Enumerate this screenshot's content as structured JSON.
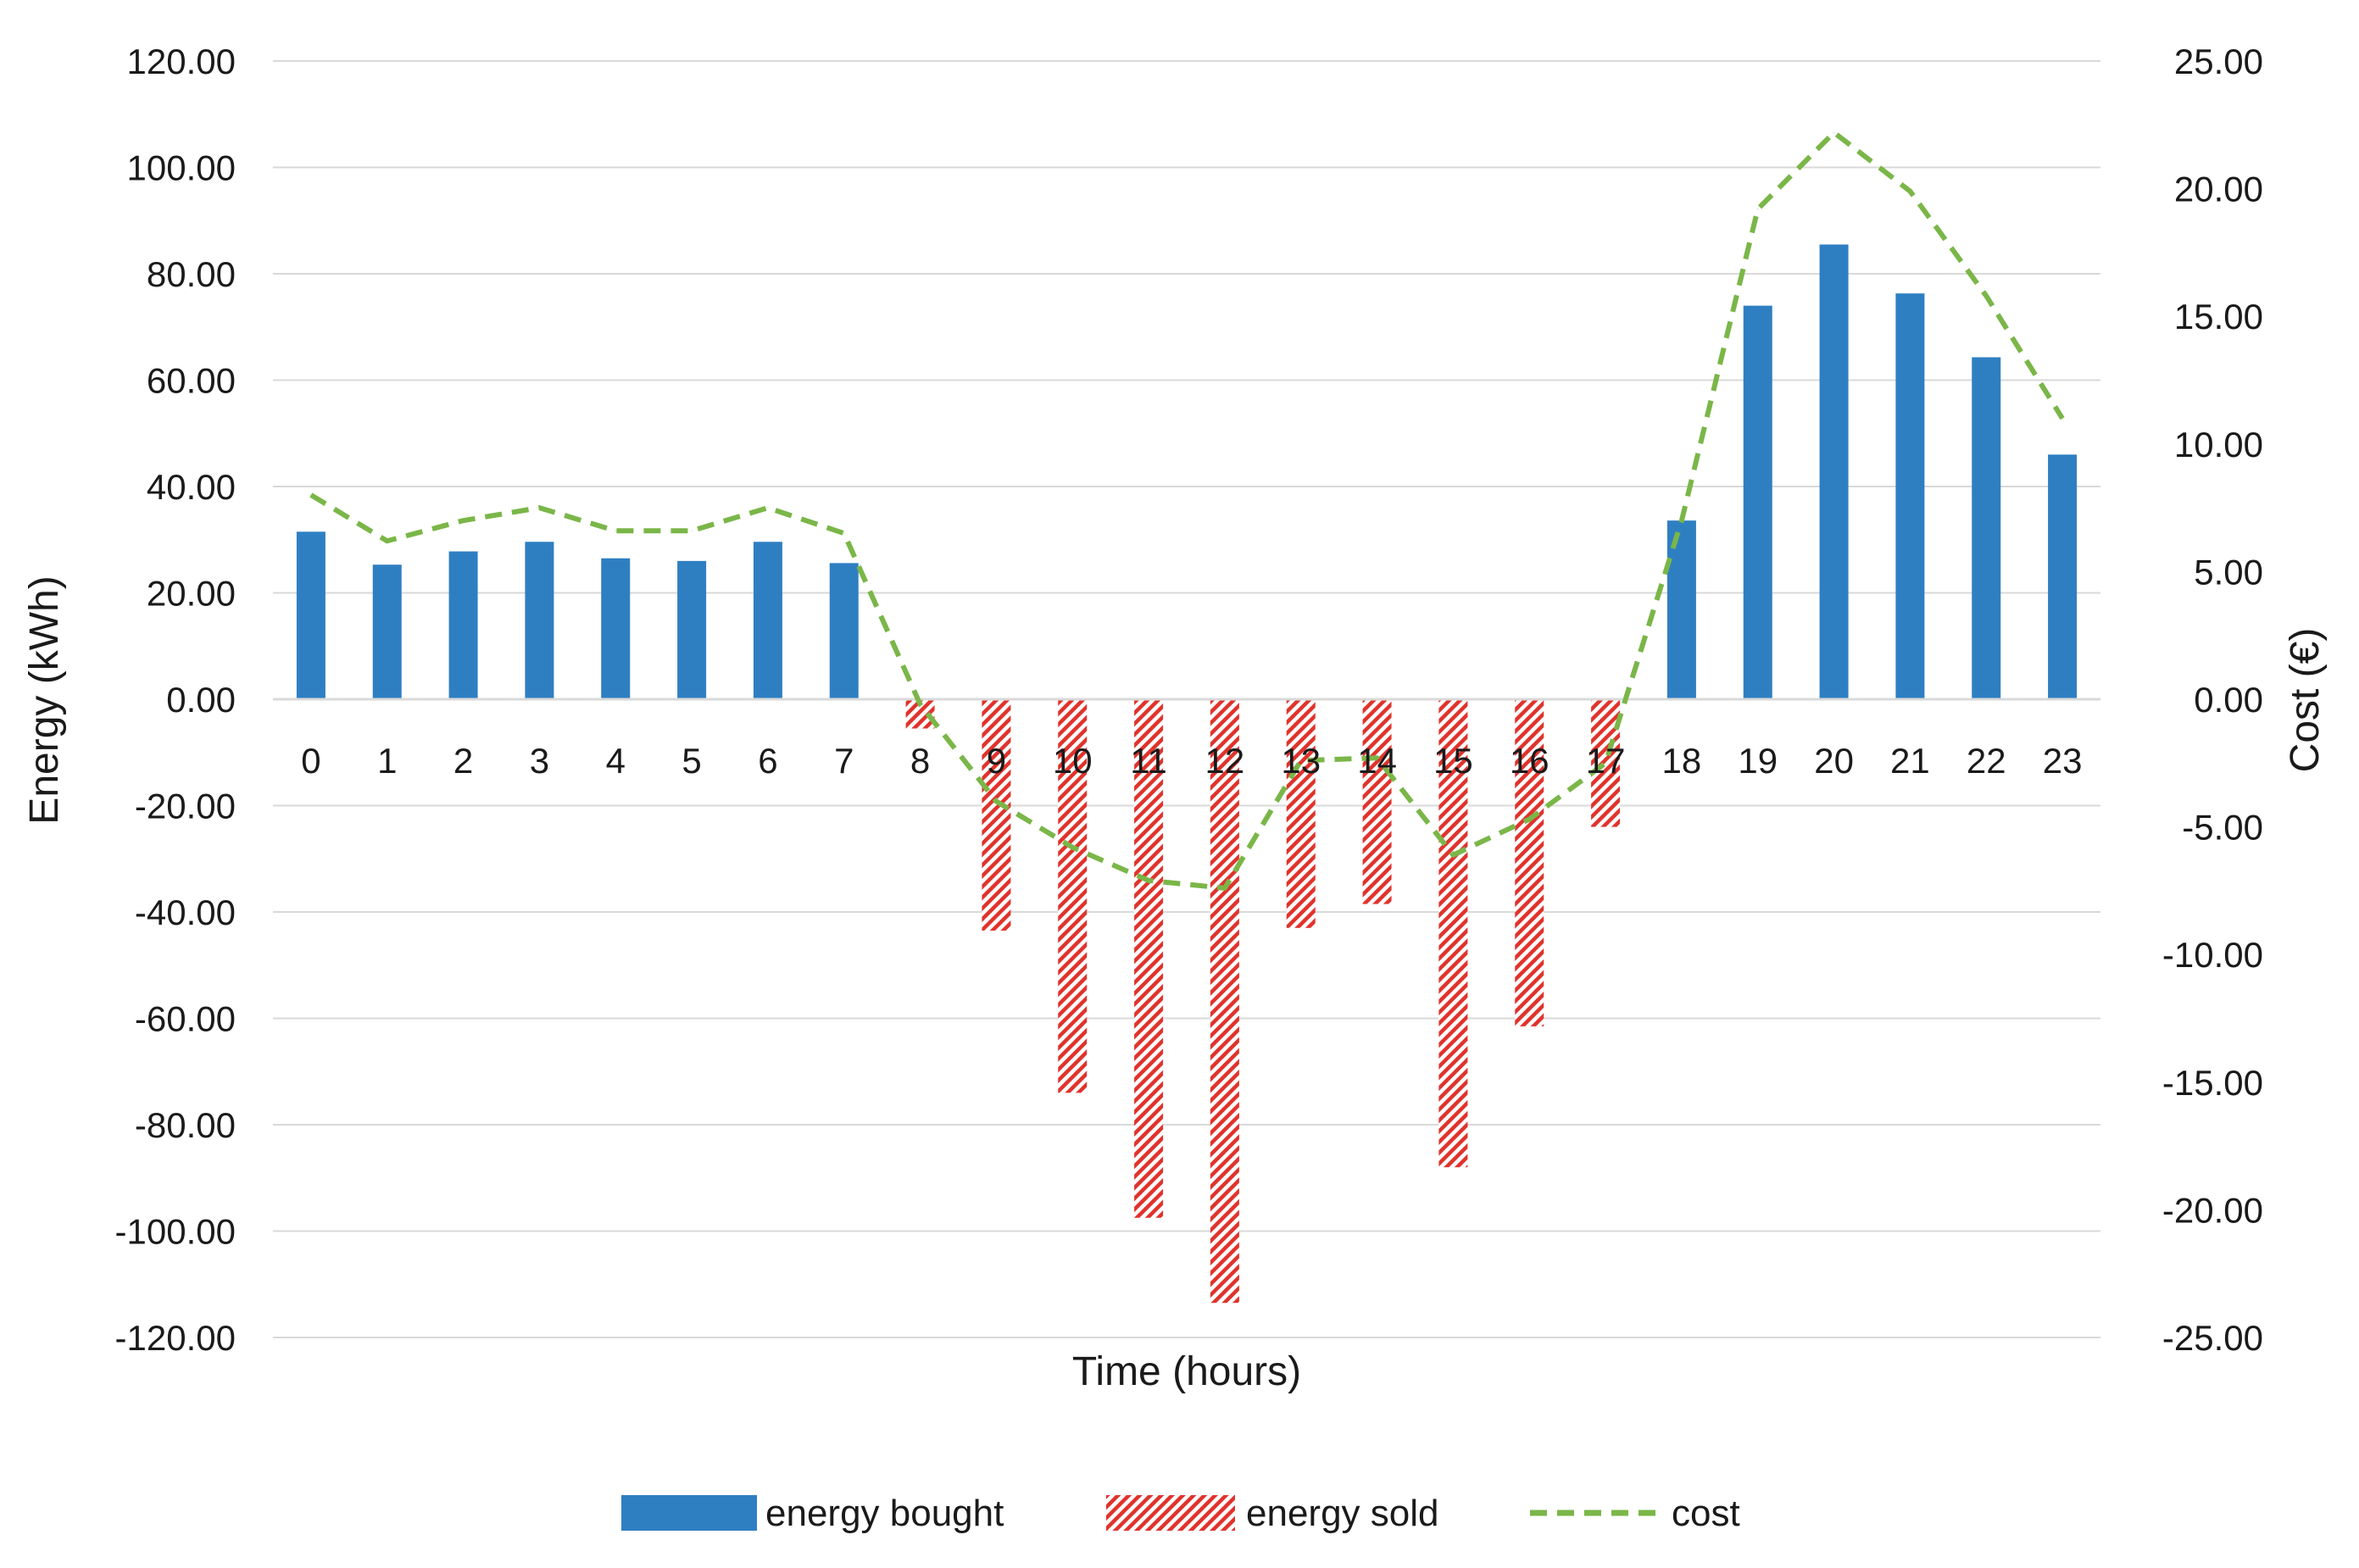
{
  "chart_data": {
    "type": "bar",
    "title": "",
    "categories": [
      "0",
      "1",
      "2",
      "3",
      "4",
      "5",
      "6",
      "7",
      "8",
      "9",
      "10",
      "11",
      "12",
      "13",
      "14",
      "15",
      "16",
      "17",
      "18",
      "19",
      "20",
      "21",
      "22",
      "23"
    ],
    "xlabel": "Time (hours)",
    "ylabel": "Energy (kWh)",
    "y2label": "Cost (€)",
    "ylim": [
      -120,
      120
    ],
    "y2lim": [
      -25,
      25
    ],
    "yticks": [
      "120.00",
      "100.00",
      "80.00",
      "60.00",
      "40.00",
      "20.00",
      "0.00",
      "-20.00",
      "-40.00",
      "-60.00",
      "-80.00",
      "-100.00",
      "-120.00"
    ],
    "y2ticks": [
      "25.00",
      "20.00",
      "15.00",
      "10.00",
      "5.00",
      "0.00",
      "-5.00",
      "-10.00",
      "-15.00",
      "-20.00",
      "-25.00"
    ],
    "grid": true,
    "legend_position": "bottom",
    "series": [
      {
        "name": "energy bought",
        "axis": "left",
        "kind": "bar",
        "color": "#2e7fc2",
        "values": [
          31.5,
          25.3,
          27.8,
          29.6,
          26.5,
          26.0,
          29.6,
          25.6,
          0,
          0,
          0,
          0,
          0,
          0,
          0,
          0,
          0,
          0,
          33.6,
          74.0,
          85.5,
          76.3,
          64.3,
          46.0
        ]
      },
      {
        "name": "energy sold",
        "axis": "left",
        "kind": "bar-hatched",
        "color": "#e0332c",
        "values": [
          0,
          0,
          0,
          0,
          0,
          0,
          0,
          0,
          -5.5,
          -43.5,
          -74.0,
          -97.5,
          -113.5,
          -43.0,
          -38.5,
          -88.0,
          -61.5,
          -24.0,
          0,
          0,
          0,
          0,
          0,
          0
        ]
      },
      {
        "name": "cost",
        "axis": "right",
        "kind": "line-dashed",
        "color": "#7ab648",
        "values": [
          8.0,
          6.2,
          7.0,
          7.5,
          6.6,
          6.6,
          7.5,
          6.5,
          -0.2,
          -4.0,
          -5.8,
          -7.1,
          -7.4,
          -2.4,
          -2.3,
          -6.1,
          -4.7,
          -2.5,
          7.0,
          19.2,
          22.2,
          19.9,
          15.8,
          11.0
        ]
      }
    ]
  }
}
